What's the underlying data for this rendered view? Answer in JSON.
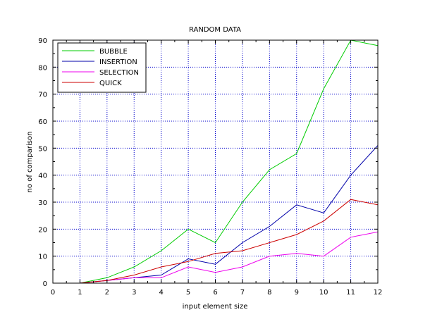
{
  "chart_data": {
    "type": "line",
    "title": "RANDOM DATA",
    "xlabel": "input element size",
    "ylabel": "no of comparison",
    "xlim": [
      0,
      12
    ],
    "ylim": [
      0,
      90
    ],
    "xticks": [
      0,
      1,
      2,
      3,
      4,
      5,
      6,
      7,
      8,
      9,
      10,
      11,
      12
    ],
    "yticks": [
      0,
      10,
      20,
      30,
      40,
      50,
      60,
      70,
      80,
      90
    ],
    "grid": true,
    "grid_style": "dotted",
    "grid_color": "#0000cc",
    "legend_position": "top-left",
    "x": [
      1,
      2,
      3,
      4,
      5,
      6,
      7,
      8,
      9,
      10,
      11,
      12
    ],
    "series": [
      {
        "name": "BUBBLE",
        "color": "#00cc00",
        "values": [
          0,
          2,
          6,
          12,
          20,
          15,
          30,
          42,
          48,
          72,
          90,
          88
        ]
      },
      {
        "name": "INSERTION",
        "color": "#0000aa",
        "values": [
          0,
          1,
          2,
          3,
          9,
          7,
          15,
          21,
          29,
          26,
          40,
          51
        ]
      },
      {
        "name": "SELECTION",
        "color": "#ee00ee",
        "values": [
          0,
          1,
          2,
          2,
          6,
          4,
          6,
          10,
          11,
          10,
          17,
          19
        ]
      },
      {
        "name": "QUICK",
        "color": "#cc0000",
        "values": [
          0,
          1,
          3,
          6,
          8,
          11,
          12,
          15,
          18,
          23,
          31,
          29
        ]
      }
    ]
  }
}
